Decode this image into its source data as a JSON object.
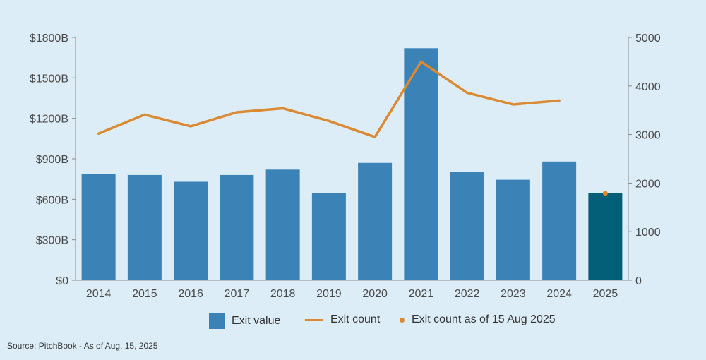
{
  "chart_data": {
    "type": "bar",
    "categories": [
      "2014",
      "2015",
      "2016",
      "2017",
      "2018",
      "2019",
      "2020",
      "2021",
      "2022",
      "2023",
      "2024",
      "2025"
    ],
    "series": [
      {
        "name": "Exit value",
        "axis": "left",
        "type": "bar",
        "values": [
          790,
          780,
          730,
          780,
          820,
          645,
          870,
          1720,
          805,
          745,
          880,
          645
        ]
      },
      {
        "name": "Exit count",
        "axis": "right",
        "type": "line",
        "values": [
          3020,
          3410,
          3170,
          3460,
          3540,
          3280,
          2950,
          4500,
          3860,
          3620,
          3700,
          null
        ]
      },
      {
        "name": "Exit count as of 15 Aug 2025",
        "axis": "right",
        "type": "point",
        "values": [
          null,
          null,
          null,
          null,
          null,
          null,
          null,
          null,
          null,
          null,
          null,
          1790
        ]
      }
    ],
    "left_axis": {
      "ylim": [
        0,
        1800
      ],
      "ticks": [
        "$0",
        "$300B",
        "$600B",
        "$900B",
        "$1200B",
        "$1500B",
        "$1800B"
      ]
    },
    "right_axis": {
      "ylim": [
        0,
        5000
      ],
      "ticks": [
        "0",
        "1000",
        "2000",
        "3000",
        "4000",
        "5000"
      ]
    },
    "highlight_category": "2025",
    "grid": false,
    "legend_position": "bottom"
  },
  "colors": {
    "background": "#ddedf7",
    "bar": "#3b82b7",
    "bar_highlight": "#035f78",
    "line": "#d98a33",
    "point": "#d98a33",
    "axis": "#8a8a8a"
  },
  "legend": {
    "exit_value": "Exit value",
    "exit_count": "Exit count",
    "exit_count_partial": "Exit count as of 15 Aug 2025"
  },
  "source": "Source: PitchBook - As of Aug. 15, 2025"
}
